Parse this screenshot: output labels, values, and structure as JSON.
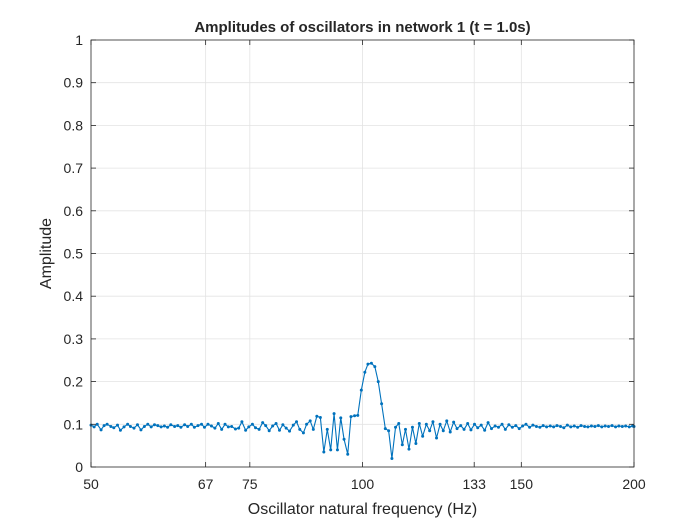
{
  "chart_data": {
    "type": "line",
    "title": "Amplitudes of oscillators in network 1 (t = 1.0s)",
    "xlabel": "Oscillator natural frequency (Hz)",
    "ylabel": "Amplitude",
    "x_scale": "log",
    "xlim": [
      50,
      200
    ],
    "ylim": [
      0,
      1
    ],
    "x_ticks": [
      50,
      67,
      75,
      100,
      133,
      150,
      200
    ],
    "x_tick_labels": [
      "50",
      "67",
      "75",
      "100",
      "133",
      "150",
      "200"
    ],
    "y_ticks": [
      0,
      0.1,
      0.2,
      0.3,
      0.4,
      0.5,
      0.6,
      0.7,
      0.8,
      0.9,
      1
    ],
    "y_tick_labels": [
      "0",
      "0.1",
      "0.2",
      "0.3",
      "0.4",
      "0.5",
      "0.6",
      "0.7",
      "0.8",
      "0.9",
      "1"
    ],
    "grid": true,
    "box": true,
    "series_color": "#0072BD",
    "series": [
      {
        "points": [
          [
            50.0,
            0.098
          ],
          [
            50.4,
            0.094
          ],
          [
            50.8,
            0.1
          ],
          [
            51.3,
            0.087
          ],
          [
            51.7,
            0.097
          ],
          [
            52.1,
            0.1
          ],
          [
            52.6,
            0.095
          ],
          [
            53.0,
            0.092
          ],
          [
            53.5,
            0.098
          ],
          [
            53.9,
            0.086
          ],
          [
            54.4,
            0.094
          ],
          [
            54.9,
            0.1
          ],
          [
            55.3,
            0.095
          ],
          [
            55.8,
            0.091
          ],
          [
            56.3,
            0.099
          ],
          [
            56.8,
            0.087
          ],
          [
            57.3,
            0.095
          ],
          [
            57.8,
            0.1
          ],
          [
            58.3,
            0.094
          ],
          [
            58.8,
            0.099
          ],
          [
            59.3,
            0.097
          ],
          [
            59.8,
            0.094
          ],
          [
            60.3,
            0.096
          ],
          [
            60.8,
            0.093
          ],
          [
            61.3,
            0.099
          ],
          [
            61.9,
            0.095
          ],
          [
            62.4,
            0.097
          ],
          [
            62.9,
            0.093
          ],
          [
            63.5,
            0.099
          ],
          [
            64.0,
            0.095
          ],
          [
            64.6,
            0.1
          ],
          [
            65.1,
            0.093
          ],
          [
            65.7,
            0.097
          ],
          [
            66.3,
            0.1
          ],
          [
            66.8,
            0.093
          ],
          [
            67.4,
            0.1
          ],
          [
            68.0,
            0.096
          ],
          [
            68.6,
            0.091
          ],
          [
            69.2,
            0.102
          ],
          [
            69.8,
            0.088
          ],
          [
            70.4,
            0.1
          ],
          [
            71.0,
            0.094
          ],
          [
            71.6,
            0.095
          ],
          [
            72.3,
            0.089
          ],
          [
            72.9,
            0.091
          ],
          [
            73.5,
            0.106
          ],
          [
            74.2,
            0.086
          ],
          [
            74.8,
            0.094
          ],
          [
            75.5,
            0.1
          ],
          [
            76.1,
            0.092
          ],
          [
            76.8,
            0.088
          ],
          [
            77.5,
            0.104
          ],
          [
            78.1,
            0.097
          ],
          [
            78.8,
            0.085
          ],
          [
            79.5,
            0.096
          ],
          [
            80.2,
            0.102
          ],
          [
            80.9,
            0.086
          ],
          [
            81.6,
            0.099
          ],
          [
            82.3,
            0.091
          ],
          [
            83.0,
            0.084
          ],
          [
            83.8,
            0.098
          ],
          [
            84.5,
            0.106
          ],
          [
            85.2,
            0.088
          ],
          [
            86.0,
            0.08
          ],
          [
            86.7,
            0.1
          ],
          [
            87.5,
            0.108
          ],
          [
            88.2,
            0.088
          ],
          [
            89.0,
            0.119
          ],
          [
            89.8,
            0.116
          ],
          [
            90.6,
            0.035
          ],
          [
            91.4,
            0.088
          ],
          [
            92.2,
            0.04
          ],
          [
            93.0,
            0.125
          ],
          [
            93.8,
            0.04
          ],
          [
            94.6,
            0.115
          ],
          [
            95.4,
            0.065
          ],
          [
            96.3,
            0.03
          ],
          [
            97.1,
            0.118
          ],
          [
            98.0,
            0.12
          ],
          [
            98.8,
            0.121
          ],
          [
            99.7,
            0.18
          ],
          [
            100.6,
            0.222
          ],
          [
            101.4,
            0.241
          ],
          [
            102.3,
            0.243
          ],
          [
            103.2,
            0.235
          ],
          [
            104.1,
            0.2
          ],
          [
            105.0,
            0.148
          ],
          [
            106.0,
            0.09
          ],
          [
            106.9,
            0.085
          ],
          [
            107.8,
            0.02
          ],
          [
            108.8,
            0.093
          ],
          [
            109.7,
            0.102
          ],
          [
            110.7,
            0.052
          ],
          [
            111.6,
            0.088
          ],
          [
            112.6,
            0.042
          ],
          [
            113.6,
            0.093
          ],
          [
            114.6,
            0.055
          ],
          [
            115.6,
            0.102
          ],
          [
            116.6,
            0.072
          ],
          [
            117.7,
            0.1
          ],
          [
            118.7,
            0.085
          ],
          [
            119.7,
            0.106
          ],
          [
            120.8,
            0.068
          ],
          [
            121.9,
            0.1
          ],
          [
            122.9,
            0.085
          ],
          [
            124.0,
            0.108
          ],
          [
            125.1,
            0.082
          ],
          [
            126.2,
            0.105
          ],
          [
            127.3,
            0.09
          ],
          [
            128.5,
            0.097
          ],
          [
            129.6,
            0.088
          ],
          [
            130.8,
            0.102
          ],
          [
            131.9,
            0.087
          ],
          [
            133.1,
            0.1
          ],
          [
            134.2,
            0.092
          ],
          [
            135.4,
            0.098
          ],
          [
            136.6,
            0.086
          ],
          [
            137.8,
            0.104
          ],
          [
            139.0,
            0.09
          ],
          [
            140.3,
            0.096
          ],
          [
            141.5,
            0.093
          ],
          [
            142.8,
            0.1
          ],
          [
            144.0,
            0.088
          ],
          [
            145.3,
            0.099
          ],
          [
            146.6,
            0.093
          ],
          [
            147.9,
            0.097
          ],
          [
            149.2,
            0.09
          ],
          [
            150.5,
            0.096
          ],
          [
            151.8,
            0.1
          ],
          [
            153.2,
            0.093
          ],
          [
            154.5,
            0.098
          ],
          [
            155.9,
            0.095
          ],
          [
            157.3,
            0.093
          ],
          [
            158.6,
            0.097
          ],
          [
            160.0,
            0.094
          ],
          [
            161.5,
            0.096
          ],
          [
            162.9,
            0.094
          ],
          [
            164.3,
            0.097
          ],
          [
            165.8,
            0.095
          ],
          [
            167.2,
            0.092
          ],
          [
            168.7,
            0.098
          ],
          [
            170.2,
            0.094
          ],
          [
            171.7,
            0.096
          ],
          [
            173.2,
            0.093
          ],
          [
            174.7,
            0.097
          ],
          [
            176.3,
            0.095
          ],
          [
            177.8,
            0.094
          ],
          [
            179.4,
            0.096
          ],
          [
            181.0,
            0.095
          ],
          [
            182.6,
            0.097
          ],
          [
            184.2,
            0.094
          ],
          [
            185.8,
            0.096
          ],
          [
            187.4,
            0.095
          ],
          [
            189.1,
            0.097
          ],
          [
            190.8,
            0.094
          ],
          [
            192.4,
            0.096
          ],
          [
            194.1,
            0.095
          ],
          [
            195.8,
            0.096
          ],
          [
            197.6,
            0.094
          ],
          [
            199.3,
            0.096
          ],
          [
            200.0,
            0.095
          ]
        ]
      }
    ]
  }
}
